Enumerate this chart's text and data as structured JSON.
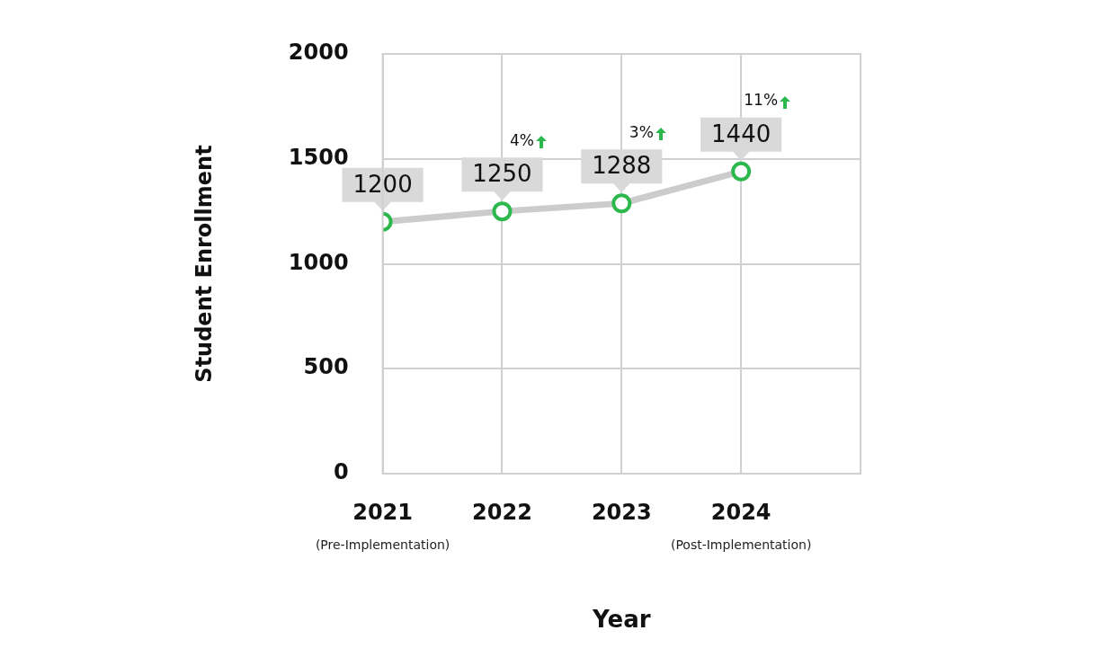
{
  "chart_data": {
    "type": "line",
    "xlabel": "Year",
    "ylabel": "Student Enrollment",
    "x": [
      2021,
      2022,
      2023,
      2024
    ],
    "series": [
      {
        "color": "#2db84d",
        "values": [
          1200,
          1250,
          1288,
          1440
        ]
      }
    ],
    "xlim": [
      2021,
      2025
    ],
    "xticks": [
      2021,
      2022,
      2023,
      2024,
      {
        "value": 2025,
        "label": null
      }
    ],
    "ylim": [
      0,
      2000
    ],
    "yticks": [
      0,
      500,
      1000,
      1500,
      2000
    ],
    "grid": true,
    "legend": false,
    "marker": "circle",
    "line_style": "solid",
    "data_labels": true,
    "annotations": [
      "(Pre-Implementation)",
      "(Post-Implementation)",
      "4%",
      "3%",
      "11%"
    ]
  }
}
